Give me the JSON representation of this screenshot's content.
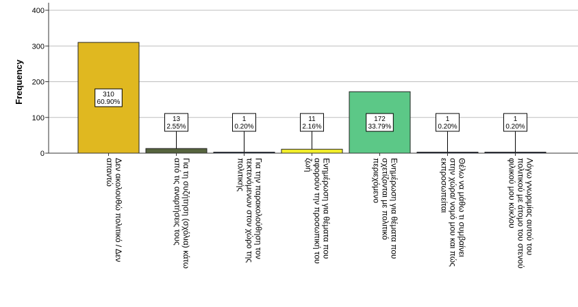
{
  "chart_data": {
    "type": "bar",
    "title": "",
    "xlabel": "",
    "ylabel": "Frequency",
    "ylim": [
      0,
      400
    ],
    "yticks": [
      "0",
      "100",
      "200",
      "300",
      "400"
    ],
    "grid": true,
    "categories": [
      {
        "lines": [
          "Δεν ακολουθώ πολιτικό / Δεν",
          "απαντώ"
        ],
        "value": 310,
        "count_label": "310",
        "pct_label": "60.90%",
        "color": "#e0b820"
      },
      {
        "lines": [
          "Για τη συζήτηση (σχόλια) κάτω",
          "από τις αναρτήσεις τους"
        ],
        "value": 13,
        "count_label": "13",
        "pct_label": "2.55%",
        "color": "#56643e"
      },
      {
        "lines": [
          "Για την παρακολούθηση τον",
          "τεκτενόμενων στον χώρο της",
          "πολιτικής"
        ],
        "value": 1,
        "count_label": "1",
        "pct_label": "0.20%",
        "color": "#3d4c6e"
      },
      {
        "lines": [
          "Ενημέρωση για θέματα που",
          "αφορούν την προσωπική του",
          "ζωή"
        ],
        "value": 11,
        "count_label": "11",
        "pct_label": "2.16%",
        "color": "#f2ee2a"
      },
      {
        "lines": [
          "Ενημέρωση για θέματα που",
          "σχετίζονται με πολιτικό",
          "περιεχόμενο"
        ],
        "value": 172,
        "count_label": "172",
        "pct_label": "33.79%",
        "color": "#5cc887"
      },
      {
        "lines": [
          "Θέλω να μάθω τι συμβαίνει",
          "στην χώρα/ νομό μου και πώς",
          "εκπροσωπείται"
        ],
        "value": 1,
        "count_label": "1",
        "pct_label": "0.20%",
        "color": "#3a4262"
      },
      {
        "lines": [
          "Λόγω γνωριμίας αυτού του",
          "πολιτικού με άτομο του στενού",
          "φιλικού μου κύκλου"
        ],
        "value": 1,
        "count_label": "1",
        "pct_label": "0.20%",
        "color": "#3a4262"
      }
    ]
  }
}
